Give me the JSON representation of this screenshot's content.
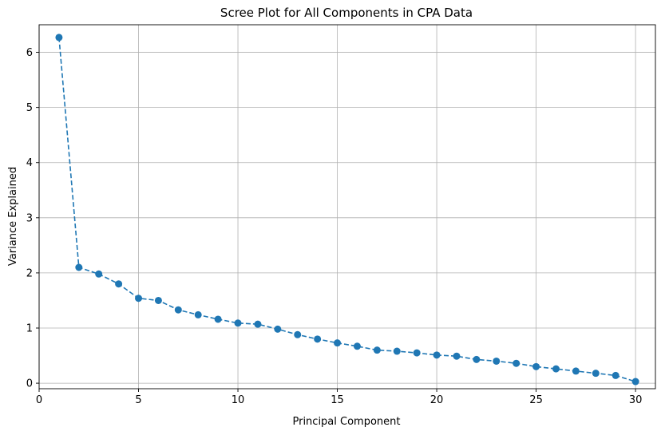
{
  "chart_data": {
    "type": "line",
    "title": "Scree Plot for All Components in CPA Data",
    "xlabel": "Principal Component",
    "ylabel": "Variance Explained",
    "xlim": [
      0,
      31
    ],
    "ylim": [
      -0.1,
      6.5
    ],
    "xticks": [
      0,
      5,
      10,
      15,
      20,
      25,
      30
    ],
    "yticks": [
      0,
      1,
      2,
      3,
      4,
      5,
      6
    ],
    "grid": true,
    "line_style": "dashed",
    "marker": "circle",
    "color": "#1f77b4",
    "series": [
      {
        "x": [
          1,
          2,
          3,
          4,
          5,
          6,
          7,
          8,
          9,
          10,
          11,
          12,
          13,
          14,
          15,
          16,
          17,
          18,
          19,
          20,
          21,
          22,
          23,
          24,
          25,
          26,
          27,
          28,
          29,
          30
        ],
        "values": [
          6.27,
          2.1,
          1.98,
          1.8,
          1.54,
          1.5,
          1.33,
          1.24,
          1.16,
          1.09,
          1.07,
          0.98,
          0.88,
          0.8,
          0.73,
          0.67,
          0.6,
          0.58,
          0.55,
          0.51,
          0.49,
          0.43,
          0.4,
          0.36,
          0.3,
          0.26,
          0.22,
          0.18,
          0.14,
          0.03
        ]
      }
    ]
  }
}
